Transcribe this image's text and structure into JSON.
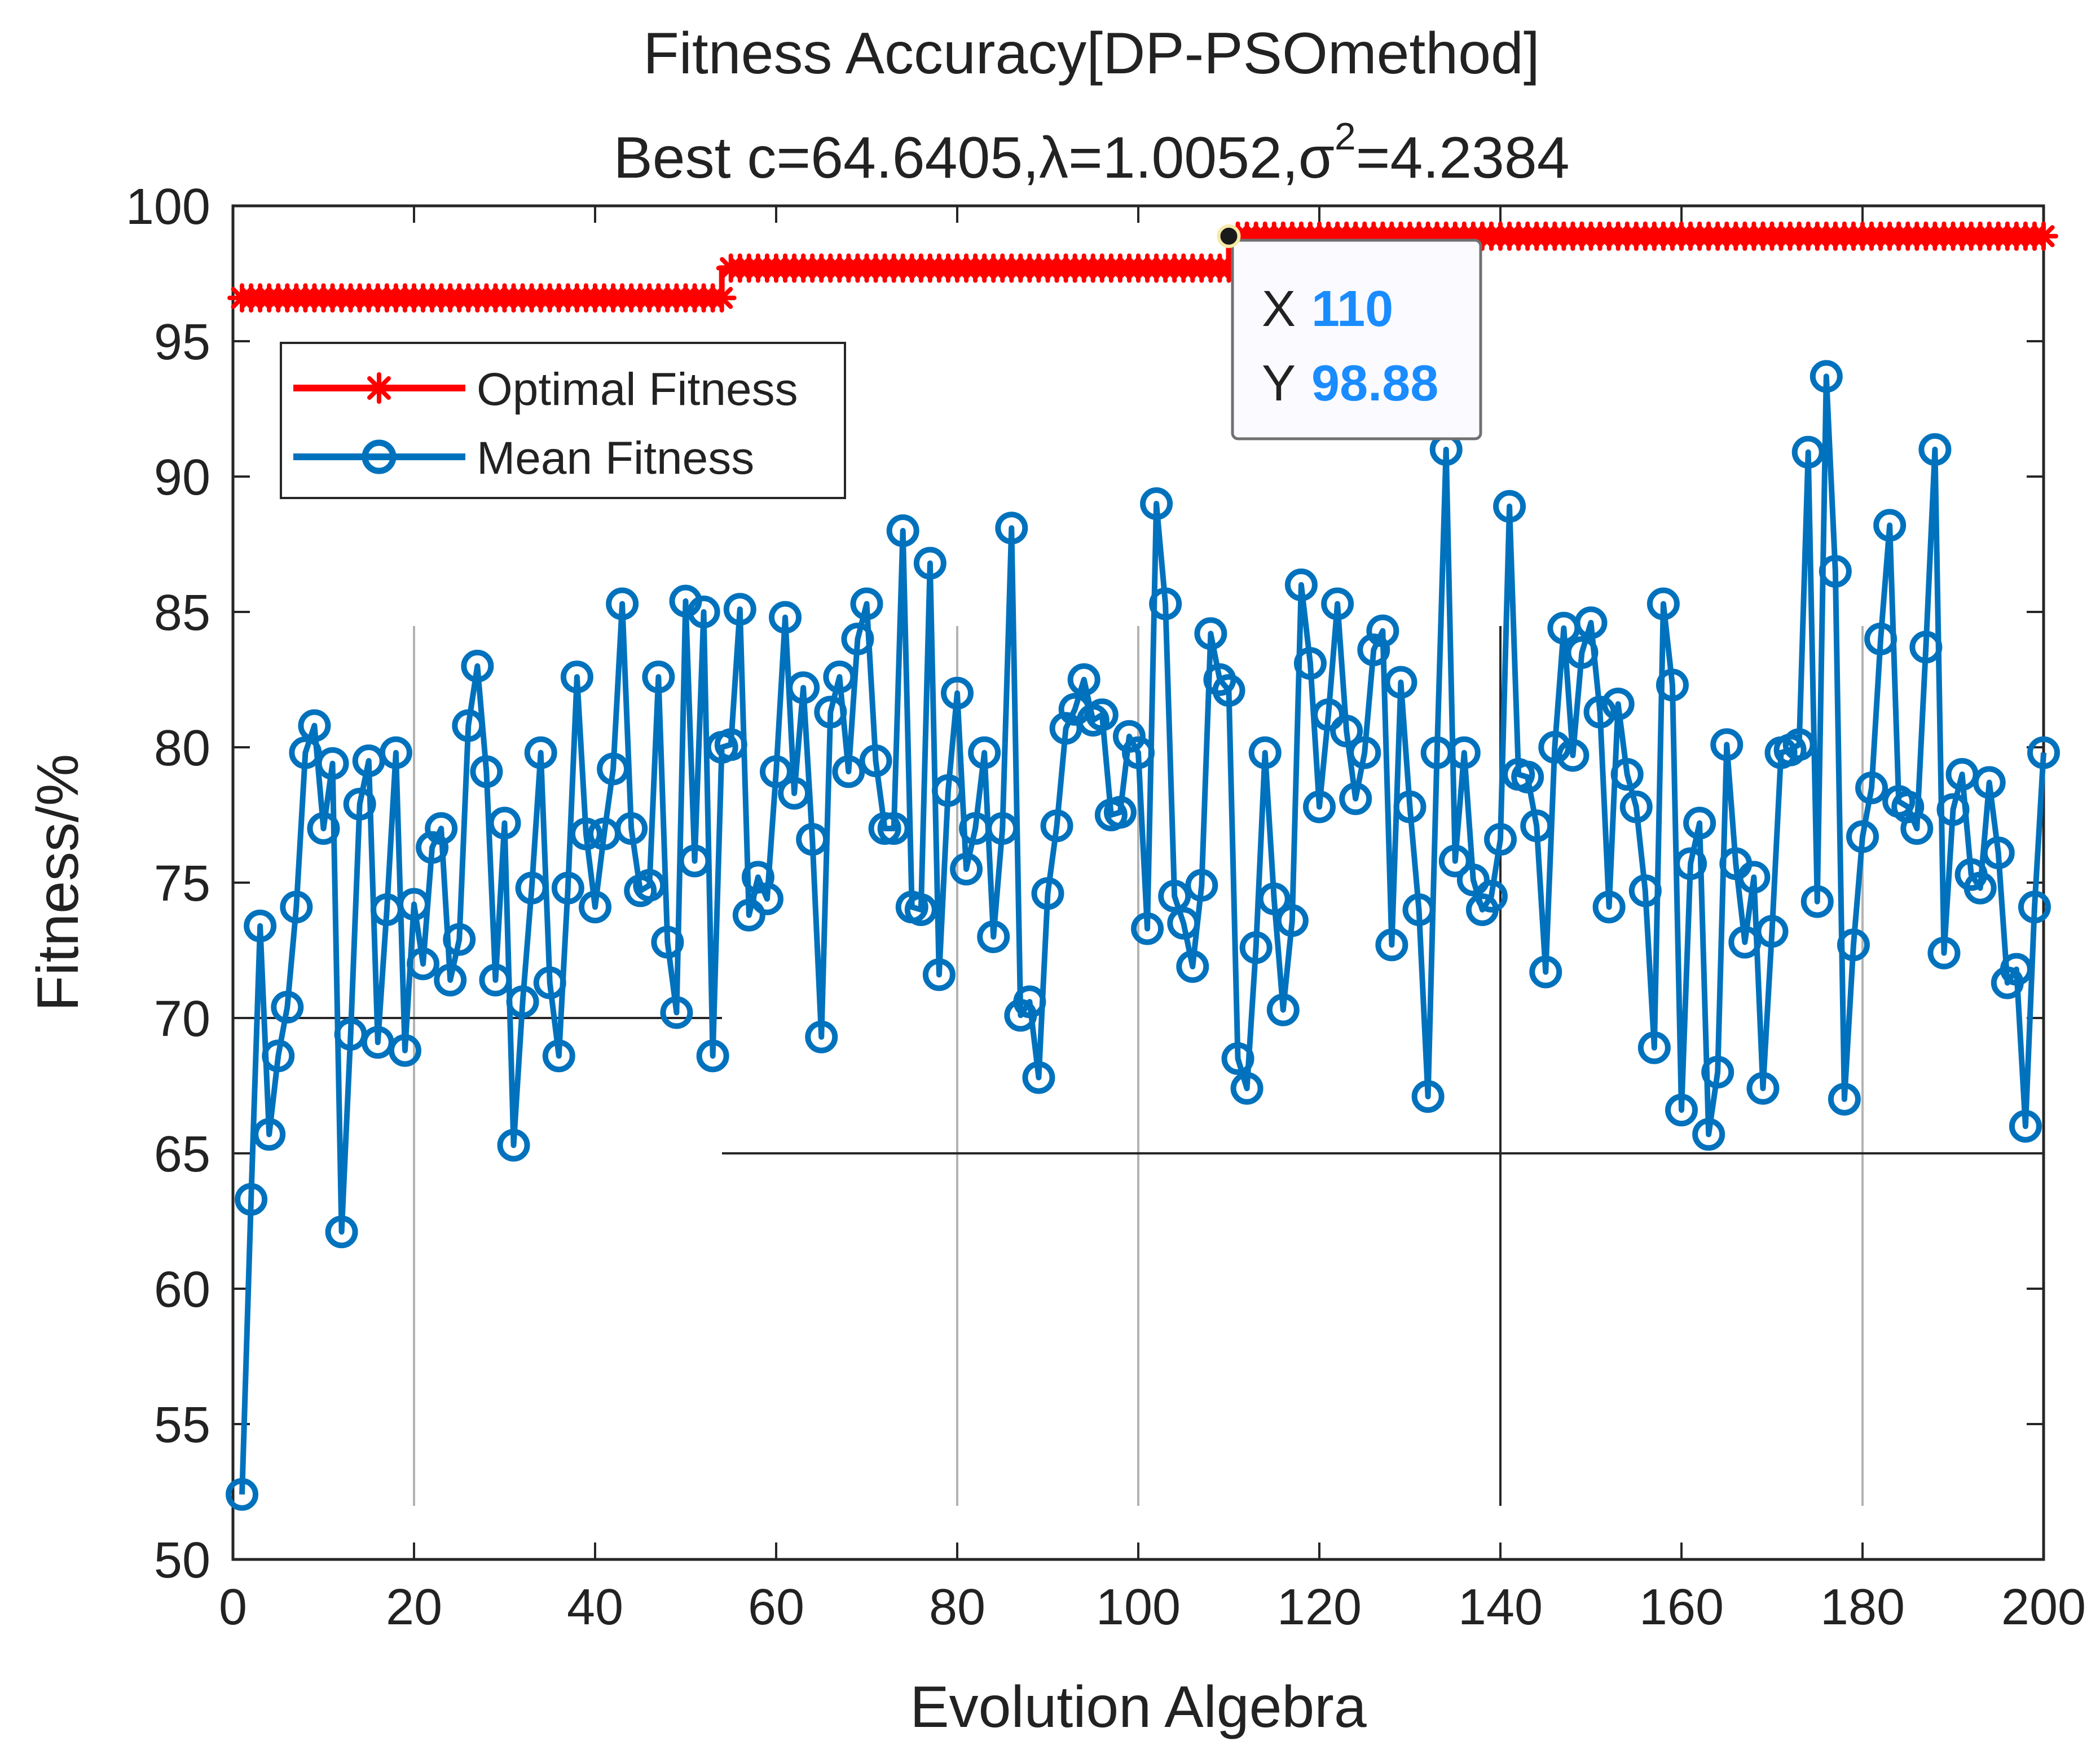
{
  "chart_data": {
    "type": "line",
    "title": "Fitness Accuracy[DP-PSOmethod]",
    "subtitle": "Best c=64.6405,λ=1.0052,σ²=4.2384",
    "subtitle_parts": {
      "prefix": "Best c=64.6405,λ=1.0052,σ",
      "sup": "2",
      "suffix": "=4.2384"
    },
    "xlabel": "Evolution Algebra",
    "ylabel": "Fitness/%",
    "xlim": [
      0,
      200
    ],
    "ylim": [
      50,
      100
    ],
    "xticks": [
      "0",
      "20",
      "40",
      "60",
      "80",
      "100",
      "120",
      "140",
      "160",
      "180",
      "200"
    ],
    "yticks": [
      "50",
      "55",
      "60",
      "65",
      "70",
      "75",
      "80",
      "85",
      "90",
      "95",
      "100"
    ],
    "legend_position": "top-left",
    "series": [
      {
        "name": "Optimal Fitness",
        "color": "#ff0000",
        "marker": "asterisk",
        "segments": [
          {
            "x_start": 1,
            "x_end": 54,
            "y": 96.6
          },
          {
            "x_start": 54,
            "x_end": 110,
            "y": 97.7
          },
          {
            "x_start": 110,
            "x_end": 200,
            "y": 98.88
          }
        ]
      },
      {
        "name": "Mean Fitness",
        "color": "#0072bd",
        "marker": "circle",
        "x_start": 1,
        "values": [
          52.4,
          63.3,
          73.4,
          65.7,
          68.6,
          70.4,
          74.1,
          79.8,
          80.8,
          77.0,
          79.4,
          62.1,
          69.4,
          77.9,
          79.5,
          69.1,
          74.0,
          79.8,
          68.8,
          74.2,
          72.0,
          76.3,
          77.0,
          71.4,
          72.9,
          80.8,
          83.0,
          79.1,
          71.4,
          77.2,
          65.3,
          70.6,
          74.8,
          79.8,
          71.3,
          68.6,
          74.8,
          82.6,
          76.8,
          74.1,
          76.8,
          79.2,
          85.3,
          77.0,
          74.7,
          74.9,
          82.6,
          72.8,
          70.2,
          85.4,
          75.8,
          85.0,
          68.6,
          80.0,
          80.1,
          85.1,
          73.8,
          75.2,
          74.4,
          79.1,
          84.8,
          78.3,
          82.2,
          76.6,
          69.3,
          81.3,
          82.6,
          79.1,
          84.0,
          85.3,
          79.5,
          77.0,
          77.0,
          88.0,
          74.1,
          74.0,
          86.8,
          71.6,
          78.4,
          82.0,
          75.5,
          77.0,
          79.8,
          73.0,
          77.0,
          88.1,
          70.1,
          70.6,
          67.8,
          74.6,
          77.1,
          80.7,
          81.4,
          82.5,
          81.0,
          81.2,
          77.5,
          77.6,
          80.4,
          79.8,
          73.3,
          89.0,
          85.3,
          74.5,
          73.5,
          71.9,
          74.9,
          84.2,
          82.5,
          82.1,
          68.5,
          67.4,
          72.6,
          79.8,
          74.4,
          70.3,
          73.6,
          86.0,
          83.1,
          77.8,
          81.2,
          85.3,
          80.6,
          78.1,
          79.8,
          83.6,
          84.3,
          72.7,
          82.4,
          77.8,
          74.0,
          67.1,
          79.8,
          91.0,
          75.8,
          79.8,
          75.1,
          74.0,
          74.5,
          76.6,
          88.9,
          79.0,
          78.9,
          77.1,
          71.7,
          80.0,
          84.4,
          79.7,
          83.5,
          84.6,
          81.3,
          74.1,
          81.6,
          79.0,
          77.8,
          74.7,
          68.9,
          85.3,
          82.3,
          66.6,
          75.7,
          77.2,
          65.7,
          68.0,
          80.1,
          75.7,
          72.8,
          75.2,
          67.4,
          73.2,
          79.8,
          79.9,
          80.1,
          90.9,
          74.3,
          93.7,
          86.5,
          67.0,
          72.7,
          76.7,
          78.5,
          84.0,
          88.2,
          78.0,
          77.8,
          77.0,
          83.7,
          91.0,
          72.4,
          77.7,
          79.0,
          75.3,
          74.8,
          78.7,
          76.1,
          71.3,
          71.8,
          66.0,
          74.1,
          79.8
        ]
      }
    ],
    "datatip": {
      "x_label": "X",
      "x_value": "110",
      "y_label": "Y",
      "y_value": "98.88",
      "x": 110,
      "y": 98.88
    }
  }
}
